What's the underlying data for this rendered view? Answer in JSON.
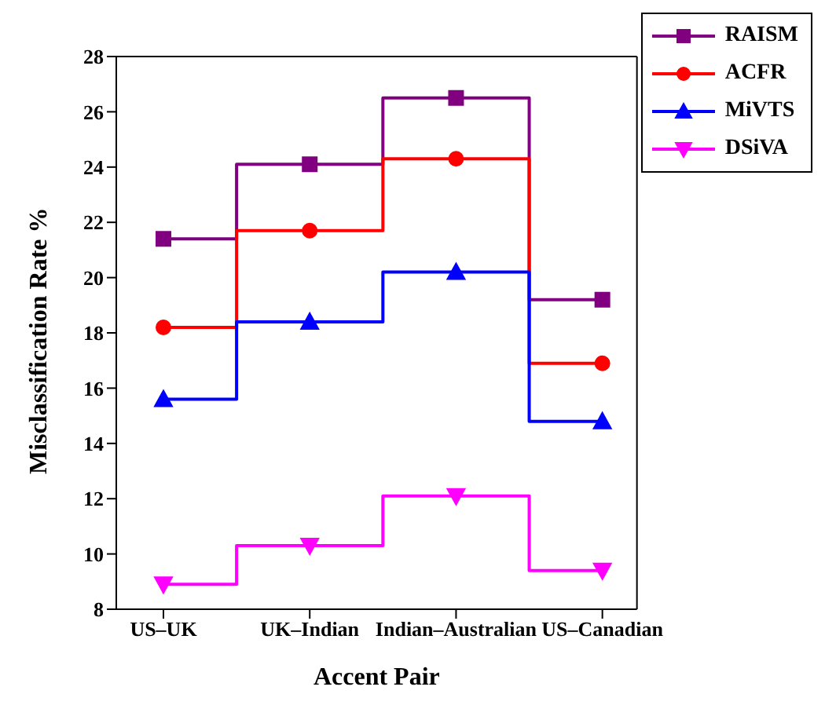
{
  "chart_data": {
    "type": "step",
    "xlabel": "Accent Pair",
    "ylabel": "Misclassification Rate %",
    "categories": [
      "US–UK",
      "UK–Indian",
      "Indian–Australian",
      "US–Canadian"
    ],
    "series": [
      {
        "name": "RAISM",
        "color": "#800080",
        "marker": "square",
        "values": [
          21.4,
          24.1,
          26.5,
          19.2
        ]
      },
      {
        "name": "ACFR",
        "color": "#ff0000",
        "marker": "circle",
        "values": [
          18.2,
          21.7,
          24.3,
          16.9
        ]
      },
      {
        "name": "MiVTS",
        "color": "#0000ff",
        "marker": "triangle",
        "values": [
          15.6,
          18.4,
          20.2,
          14.8
        ]
      },
      {
        "name": "DSiVA",
        "color": "#ff00ff",
        "marker": "triangle-down",
        "values": [
          8.9,
          10.3,
          12.1,
          9.4
        ]
      }
    ],
    "ylim": [
      8,
      28
    ],
    "yticks": [
      8,
      10,
      12,
      14,
      16,
      18,
      20,
      22,
      24,
      26,
      28
    ],
    "grid": false,
    "legend": "top right"
  }
}
